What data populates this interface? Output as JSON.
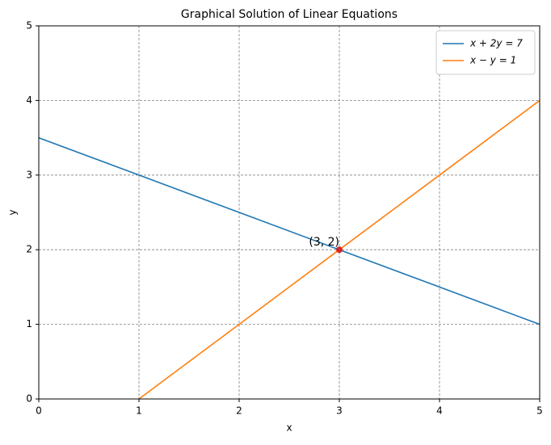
{
  "chart_data": {
    "type": "line",
    "title": "Graphical Solution of Linear Equations",
    "x_label": "x",
    "y_label": "y",
    "x": [
      0,
      1,
      2,
      3,
      4,
      5
    ],
    "series": [
      {
        "name": "x + 2y = 7",
        "color": "#1f77b4",
        "values": [
          3.5,
          3,
          2.5,
          2,
          1.5,
          1
        ]
      },
      {
        "name": "x − y = 1",
        "color": "#ff7f0e",
        "values": [
          null,
          0,
          1,
          2,
          3,
          4
        ]
      }
    ],
    "points": [
      {
        "label": "(3, 2)",
        "x": 3,
        "y": 2,
        "color": "#d62728"
      }
    ],
    "xlim": [
      0,
      5
    ],
    "ylim": [
      0,
      5
    ],
    "xticks": [
      0,
      1,
      2,
      3,
      4,
      5
    ],
    "yticks": [
      0,
      1,
      2,
      3,
      4,
      5
    ],
    "grid": true,
    "legend": "upper right"
  }
}
